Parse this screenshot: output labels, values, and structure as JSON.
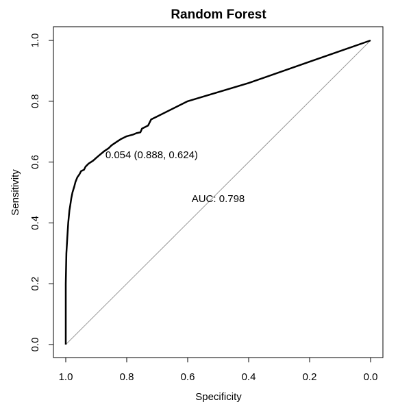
{
  "chart_data": {
    "type": "line",
    "title": "Random Forest",
    "xlabel": "Specificity",
    "ylabel": "Sensitivity",
    "x_reversed": true,
    "xlim": [
      1.0,
      0.0
    ],
    "ylim": [
      0.0,
      1.0
    ],
    "x_ticks": [
      "1.0",
      "0.8",
      "0.6",
      "0.4",
      "0.2",
      "0.0"
    ],
    "y_ticks": [
      "0.0",
      "0.2",
      "0.4",
      "0.6",
      "0.8",
      "1.0"
    ],
    "grid": false,
    "series": [
      {
        "color": "#000000",
        "x": [
          1.0,
          1.0,
          0.998,
          0.995,
          0.992,
          0.988,
          0.985,
          0.982,
          0.978,
          0.975,
          0.972,
          0.968,
          0.962,
          0.955,
          0.95,
          0.94,
          0.935,
          0.925,
          0.91,
          0.9,
          0.888,
          0.875,
          0.86,
          0.85,
          0.835,
          0.82,
          0.8,
          0.78,
          0.768,
          0.755,
          0.75,
          0.73,
          0.72,
          0.7,
          0.6,
          0.4,
          0.2,
          0.0
        ],
        "y": [
          0.0,
          0.2,
          0.3,
          0.35,
          0.4,
          0.44,
          0.46,
          0.48,
          0.5,
          0.51,
          0.52,
          0.535,
          0.55,
          0.56,
          0.57,
          0.575,
          0.585,
          0.595,
          0.605,
          0.614,
          0.624,
          0.635,
          0.645,
          0.655,
          0.665,
          0.675,
          0.685,
          0.69,
          0.695,
          0.698,
          0.71,
          0.72,
          0.74,
          0.75,
          0.8,
          0.86,
          0.93,
          1.0
        ]
      },
      {
        "color": "#999999",
        "x": [
          1.0,
          0.0
        ],
        "y": [
          0.0,
          1.0
        ]
      }
    ],
    "annotations": [
      {
        "text": "0.054 (0.888, 0.624)",
        "x": 0.888,
        "y": 0.624
      },
      {
        "text": "AUC: 0.798",
        "x": 0.5,
        "y": 0.48
      }
    ]
  }
}
